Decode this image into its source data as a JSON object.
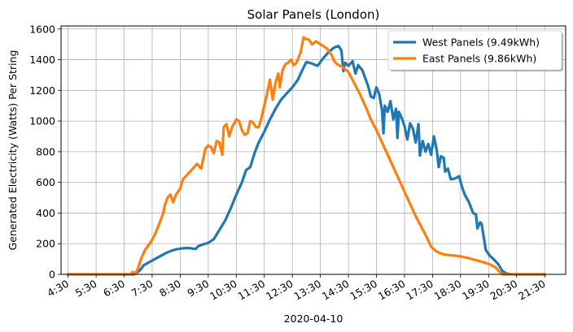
{
  "chart_data": {
    "type": "line",
    "title": "Solar Panels (London)",
    "xlabel": "2020-04-10",
    "ylabel": "Generated Electricity (Watts) Per String",
    "xlim": [
      4.25,
      22.25
    ],
    "ylim": [
      0,
      1620
    ],
    "grid": true,
    "legend_position": "top-right",
    "x_ticks": [
      {
        "x": 4.5,
        "label": "4:30"
      },
      {
        "x": 5.5,
        "label": "5:30"
      },
      {
        "x": 6.5,
        "label": "6:30"
      },
      {
        "x": 7.5,
        "label": "7:30"
      },
      {
        "x": 8.5,
        "label": "8:30"
      },
      {
        "x": 9.5,
        "label": "9:30"
      },
      {
        "x": 10.5,
        "label": "10:30"
      },
      {
        "x": 11.5,
        "label": "11:30"
      },
      {
        "x": 12.5,
        "label": "12:30"
      },
      {
        "x": 13.5,
        "label": "13:30"
      },
      {
        "x": 14.5,
        "label": "14:30"
      },
      {
        "x": 15.5,
        "label": "15:30"
      },
      {
        "x": 16.5,
        "label": "16:30"
      },
      {
        "x": 17.5,
        "label": "17:30"
      },
      {
        "x": 18.5,
        "label": "18:30"
      },
      {
        "x": 19.5,
        "label": "19:30"
      },
      {
        "x": 20.5,
        "label": "20:30"
      },
      {
        "x": 21.5,
        "label": "21:30"
      }
    ],
    "y_ticks": [
      0,
      200,
      400,
      600,
      800,
      1000,
      1200,
      1400,
      1600
    ],
    "series": [
      {
        "name": "West Panels (9.49kWh)",
        "color": "#1f77b4",
        "points": [
          [
            4.5,
            0
          ],
          [
            5.5,
            0
          ],
          [
            6.5,
            0
          ],
          [
            6.83,
            0
          ],
          [
            6.95,
            10
          ],
          [
            7.08,
            30
          ],
          [
            7.2,
            60
          ],
          [
            7.4,
            80
          ],
          [
            7.6,
            100
          ],
          [
            7.8,
            120
          ],
          [
            8.0,
            140
          ],
          [
            8.2,
            155
          ],
          [
            8.4,
            165
          ],
          [
            8.6,
            170
          ],
          [
            8.8,
            172
          ],
          [
            8.95,
            168
          ],
          [
            9.05,
            165
          ],
          [
            9.15,
            185
          ],
          [
            9.3,
            195
          ],
          [
            9.5,
            205
          ],
          [
            9.7,
            230
          ],
          [
            9.9,
            290
          ],
          [
            10.1,
            350
          ],
          [
            10.3,
            430
          ],
          [
            10.5,
            520
          ],
          [
            10.7,
            600
          ],
          [
            10.85,
            680
          ],
          [
            11.0,
            700
          ],
          [
            11.15,
            790
          ],
          [
            11.3,
            860
          ],
          [
            11.5,
            930
          ],
          [
            11.7,
            1010
          ],
          [
            11.9,
            1080
          ],
          [
            12.1,
            1140
          ],
          [
            12.3,
            1180
          ],
          [
            12.5,
            1220
          ],
          [
            12.7,
            1270
          ],
          [
            12.85,
            1330
          ],
          [
            13.0,
            1385
          ],
          [
            13.2,
            1375
          ],
          [
            13.4,
            1360
          ],
          [
            13.6,
            1410
          ],
          [
            13.8,
            1450
          ],
          [
            14.0,
            1480
          ],
          [
            14.15,
            1490
          ],
          [
            14.25,
            1460
          ],
          [
            14.32,
            1325
          ],
          [
            14.38,
            1380
          ],
          [
            14.5,
            1360
          ],
          [
            14.65,
            1390
          ],
          [
            14.75,
            1310
          ],
          [
            14.85,
            1365
          ],
          [
            15.0,
            1330
          ],
          [
            15.1,
            1280
          ],
          [
            15.2,
            1230
          ],
          [
            15.3,
            1160
          ],
          [
            15.4,
            1150
          ],
          [
            15.5,
            1220
          ],
          [
            15.6,
            1175
          ],
          [
            15.7,
            1070
          ],
          [
            15.75,
            920
          ],
          [
            15.8,
            1100
          ],
          [
            15.9,
            1060
          ],
          [
            16.0,
            1130
          ],
          [
            16.1,
            1010
          ],
          [
            16.2,
            1080
          ],
          [
            16.25,
            890
          ],
          [
            16.3,
            1060
          ],
          [
            16.4,
            1020
          ],
          [
            16.5,
            970
          ],
          [
            16.6,
            880
          ],
          [
            16.7,
            985
          ],
          [
            16.8,
            950
          ],
          [
            16.9,
            860
          ],
          [
            17.0,
            980
          ],
          [
            17.05,
            775
          ],
          [
            17.15,
            870
          ],
          [
            17.25,
            800
          ],
          [
            17.35,
            850
          ],
          [
            17.45,
            780
          ],
          [
            17.55,
            900
          ],
          [
            17.65,
            810
          ],
          [
            17.72,
            700
          ],
          [
            17.8,
            770
          ],
          [
            17.9,
            760
          ],
          [
            17.95,
            670
          ],
          [
            18.05,
            690
          ],
          [
            18.15,
            620
          ],
          [
            18.3,
            625
          ],
          [
            18.45,
            640
          ],
          [
            18.55,
            570
          ],
          [
            18.65,
            520
          ],
          [
            18.8,
            470
          ],
          [
            18.95,
            400
          ],
          [
            19.05,
            390
          ],
          [
            19.1,
            300
          ],
          [
            19.2,
            340
          ],
          [
            19.25,
            330
          ],
          [
            19.4,
            160
          ],
          [
            19.55,
            120
          ],
          [
            19.7,
            95
          ],
          [
            19.85,
            65
          ],
          [
            20.0,
            20
          ],
          [
            20.15,
            5
          ],
          [
            20.3,
            0
          ],
          [
            21.5,
            0
          ]
        ]
      },
      {
        "name": "East Panels (9.86kWh)",
        "color": "#ff7f0e",
        "points": [
          [
            4.5,
            0
          ],
          [
            5.5,
            0
          ],
          [
            6.5,
            0
          ],
          [
            6.75,
            0
          ],
          [
            6.8,
            15
          ],
          [
            6.9,
            5
          ],
          [
            7.0,
            40
          ],
          [
            7.1,
            100
          ],
          [
            7.25,
            160
          ],
          [
            7.45,
            210
          ],
          [
            7.6,
            260
          ],
          [
            7.75,
            330
          ],
          [
            7.9,
            400
          ],
          [
            7.95,
            450
          ],
          [
            8.05,
            500
          ],
          [
            8.15,
            520
          ],
          [
            8.25,
            470
          ],
          [
            8.35,
            520
          ],
          [
            8.5,
            560
          ],
          [
            8.6,
            620
          ],
          [
            8.75,
            650
          ],
          [
            8.9,
            680
          ],
          [
            9.0,
            700
          ],
          [
            9.1,
            720
          ],
          [
            9.25,
            690
          ],
          [
            9.4,
            820
          ],
          [
            9.5,
            840
          ],
          [
            9.6,
            830
          ],
          [
            9.7,
            790
          ],
          [
            9.8,
            870
          ],
          [
            9.9,
            860
          ],
          [
            10.0,
            780
          ],
          [
            10.05,
            960
          ],
          [
            10.15,
            980
          ],
          [
            10.25,
            900
          ],
          [
            10.35,
            960
          ],
          [
            10.5,
            1010
          ],
          [
            10.6,
            1000
          ],
          [
            10.7,
            940
          ],
          [
            10.8,
            910
          ],
          [
            10.9,
            920
          ],
          [
            11.0,
            1000
          ],
          [
            11.1,
            990
          ],
          [
            11.2,
            960
          ],
          [
            11.3,
            960
          ],
          [
            11.4,
            1020
          ],
          [
            11.5,
            1100
          ],
          [
            11.6,
            1180
          ],
          [
            11.7,
            1270
          ],
          [
            11.8,
            1140
          ],
          [
            11.9,
            1250
          ],
          [
            12.0,
            1310
          ],
          [
            12.05,
            1220
          ],
          [
            12.15,
            1330
          ],
          [
            12.25,
            1370
          ],
          [
            12.35,
            1380
          ],
          [
            12.45,
            1400
          ],
          [
            12.55,
            1365
          ],
          [
            12.65,
            1380
          ],
          [
            12.8,
            1450
          ],
          [
            12.9,
            1545
          ],
          [
            13.0,
            1535
          ],
          [
            13.1,
            1530
          ],
          [
            13.2,
            1500
          ],
          [
            13.35,
            1520
          ],
          [
            13.5,
            1500
          ],
          [
            13.6,
            1490
          ],
          [
            13.75,
            1470
          ],
          [
            13.9,
            1430
          ],
          [
            14.0,
            1390
          ],
          [
            14.1,
            1370
          ],
          [
            14.3,
            1350
          ],
          [
            14.5,
            1320
          ],
          [
            14.7,
            1250
          ],
          [
            14.9,
            1180
          ],
          [
            15.1,
            1100
          ],
          [
            15.3,
            1010
          ],
          [
            15.5,
            940
          ],
          [
            15.7,
            860
          ],
          [
            15.9,
            780
          ],
          [
            16.1,
            700
          ],
          [
            16.3,
            620
          ],
          [
            16.5,
            540
          ],
          [
            16.7,
            460
          ],
          [
            16.9,
            380
          ],
          [
            17.1,
            310
          ],
          [
            17.3,
            240
          ],
          [
            17.45,
            180
          ],
          [
            17.6,
            155
          ],
          [
            17.75,
            140
          ],
          [
            17.9,
            130
          ],
          [
            18.1,
            125
          ],
          [
            18.4,
            120
          ],
          [
            18.7,
            110
          ],
          [
            19.0,
            95
          ],
          [
            19.3,
            80
          ],
          [
            19.55,
            65
          ],
          [
            19.75,
            45
          ],
          [
            19.9,
            15
          ],
          [
            20.0,
            0
          ],
          [
            21.5,
            0
          ]
        ]
      }
    ]
  }
}
